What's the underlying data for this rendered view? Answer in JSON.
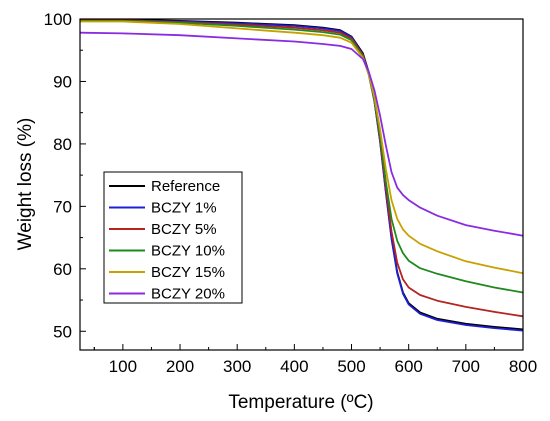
{
  "chart_data": {
    "type": "line",
    "title": "",
    "xlabel": "Temperature (ºC)",
    "ylabel": "Weight loss (%)",
    "xlim": [
      25,
      800
    ],
    "ylim": [
      47,
      100
    ],
    "xticks": [
      100,
      200,
      300,
      400,
      500,
      600,
      700,
      800
    ],
    "yticks": [
      50,
      60,
      70,
      80,
      90,
      100
    ],
    "grid": false,
    "legend_position": "lower-left",
    "series": [
      {
        "name": "Reference",
        "color": "#000000",
        "x": [
          25,
          100,
          200,
          300,
          400,
          450,
          480,
          500,
          520,
          530,
          540,
          550,
          560,
          570,
          580,
          590,
          600,
          620,
          650,
          700,
          750,
          800
        ],
        "y": [
          99.9,
          99.9,
          99.7,
          99.4,
          99.0,
          98.6,
          98.2,
          97.2,
          94.5,
          91.5,
          87.0,
          80.5,
          72.5,
          65.0,
          59.5,
          56.2,
          54.5,
          53.0,
          52.0,
          51.2,
          50.7,
          50.3
        ]
      },
      {
        "name": "BCZY 1%",
        "color": "#1f1fd6",
        "x": [
          25,
          100,
          200,
          300,
          400,
          450,
          480,
          500,
          520,
          530,
          540,
          550,
          560,
          570,
          580,
          590,
          600,
          620,
          650,
          700,
          750,
          800
        ],
        "y": [
          99.8,
          99.8,
          99.6,
          99.3,
          98.9,
          98.5,
          98.1,
          97.1,
          94.3,
          91.3,
          86.8,
          80.3,
          72.3,
          64.8,
          59.3,
          56.0,
          54.3,
          52.8,
          51.8,
          51.0,
          50.5,
          50.1
        ]
      },
      {
        "name": "BCZY 5%",
        "color": "#b5241f",
        "x": [
          25,
          100,
          200,
          300,
          400,
          450,
          480,
          500,
          520,
          530,
          540,
          550,
          560,
          570,
          580,
          590,
          600,
          620,
          650,
          700,
          750,
          800
        ],
        "y": [
          99.8,
          99.8,
          99.5,
          99.1,
          98.6,
          98.2,
          97.8,
          96.9,
          94.2,
          91.2,
          86.9,
          80.7,
          73.0,
          66.0,
          61.0,
          58.3,
          57.0,
          55.8,
          54.9,
          53.9,
          53.1,
          52.4
        ]
      },
      {
        "name": "BCZY 10%",
        "color": "#1e8a1e",
        "x": [
          25,
          100,
          200,
          300,
          400,
          450,
          480,
          500,
          520,
          530,
          540,
          550,
          560,
          570,
          580,
          590,
          600,
          620,
          650,
          700,
          750,
          800
        ],
        "y": [
          99.7,
          99.7,
          99.4,
          98.9,
          98.3,
          97.9,
          97.5,
          96.6,
          94.0,
          91.1,
          87.0,
          81.2,
          74.0,
          68.0,
          64.5,
          62.5,
          61.3,
          60.1,
          59.2,
          58.0,
          57.0,
          56.2
        ]
      },
      {
        "name": "BCZY 15%",
        "color": "#c9a000",
        "x": [
          25,
          100,
          200,
          300,
          400,
          450,
          480,
          500,
          520,
          530,
          540,
          550,
          560,
          570,
          580,
          590,
          600,
          620,
          650,
          700,
          750,
          800
        ],
        "y": [
          99.6,
          99.6,
          99.2,
          98.5,
          97.8,
          97.4,
          97.0,
          96.2,
          93.8,
          91.2,
          87.5,
          82.3,
          76.0,
          71.0,
          68.0,
          66.3,
          65.3,
          64.0,
          62.8,
          61.2,
          60.2,
          59.3
        ]
      },
      {
        "name": "BCZY 20%",
        "color": "#8a2be2",
        "x": [
          25,
          100,
          200,
          300,
          400,
          450,
          480,
          500,
          520,
          530,
          540,
          550,
          560,
          570,
          580,
          590,
          600,
          620,
          650,
          700,
          750,
          800
        ],
        "y": [
          97.8,
          97.7,
          97.4,
          96.9,
          96.4,
          96.0,
          95.7,
          95.2,
          93.6,
          91.6,
          88.6,
          84.5,
          79.8,
          75.5,
          73.0,
          71.8,
          71.0,
          69.8,
          68.5,
          67.0,
          66.1,
          65.3
        ]
      }
    ]
  }
}
